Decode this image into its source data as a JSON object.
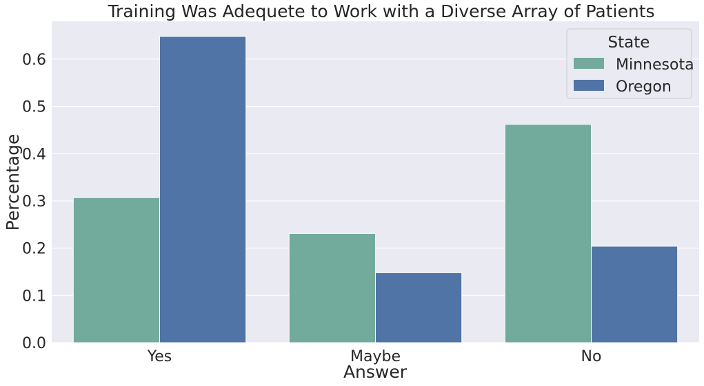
{
  "chart_data": {
    "type": "bar",
    "title": "Training Was Adequete to Work with a Diverse Array of Patients",
    "xlabel": "Answer",
    "ylabel": "Percentage",
    "categories": [
      "Yes",
      "Maybe",
      "No"
    ],
    "series": [
      {
        "name": "Minnesota",
        "values": [
          0.307,
          0.231,
          0.462
        ],
        "color": "#72aa9b"
      },
      {
        "name": "Oregon",
        "values": [
          0.648,
          0.148,
          0.204
        ],
        "color": "#4f74a5"
      }
    ],
    "ylim": [
      0,
      0.68
    ],
    "yticks": [
      "0.0",
      "0.1",
      "0.2",
      "0.3",
      "0.4",
      "0.5",
      "0.6"
    ],
    "grid": true,
    "legend": {
      "title": "State",
      "position": "top-right"
    },
    "colors": {
      "background": "#eaeaf2",
      "grid": "#ffffff"
    }
  }
}
